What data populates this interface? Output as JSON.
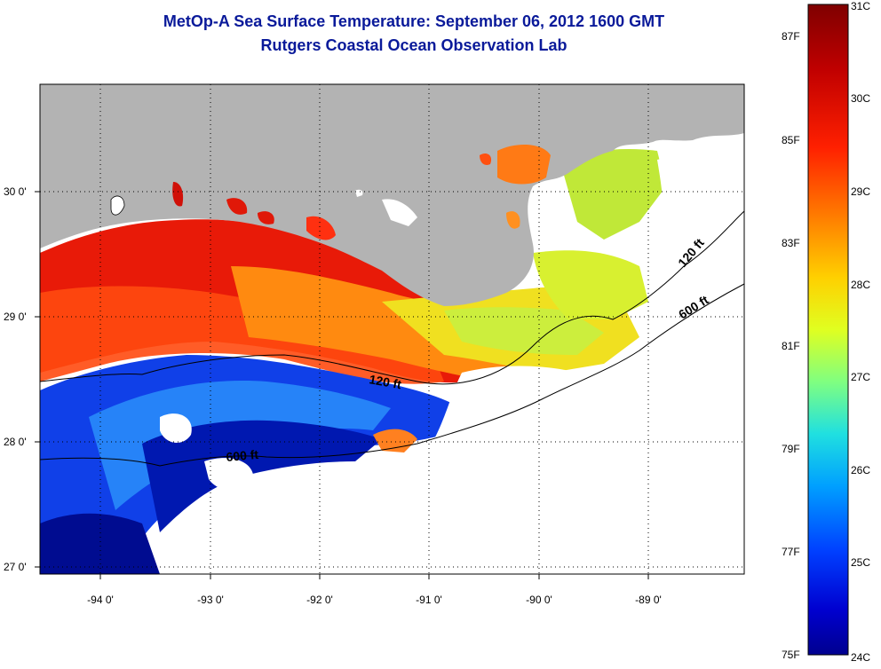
{
  "header": {
    "title": "MetOp-A Sea Surface Temperature:  September 06, 2012 1600 GMT",
    "subtitle": "Rutgers Coastal Ocean Observation Lab"
  },
  "map": {
    "lon_labels": [
      "-94 0'",
      "-93 0'",
      "-92 0'",
      "-91 0'",
      "-90 0'",
      "-89 0'"
    ],
    "lat_labels": [
      "30 0'",
      "29 0'",
      "28 0'",
      "27 0'"
    ],
    "isobath_labels": [
      "120 ft",
      "600 ft",
      "120 ft",
      "600 ft"
    ],
    "colors": {
      "land": "#b3b3b3",
      "no_data": "#ffffff"
    }
  },
  "colorbar": {
    "celsius_labels": [
      "31C",
      "30C",
      "29C",
      "28C",
      "27C",
      "26C",
      "25C",
      "24C"
    ],
    "fahrenheit_labels": [
      "87F",
      "85F",
      "83F",
      "81F",
      "79F",
      "77F",
      "75F"
    ],
    "gradient_colors": [
      "#7f0000",
      "#d00000",
      "#ff3000",
      "#ff9000",
      "#ffe000",
      "#c0ff40",
      "#40ffc0",
      "#00c0ff",
      "#0060ff",
      "#0010d0",
      "#00008f"
    ]
  }
}
